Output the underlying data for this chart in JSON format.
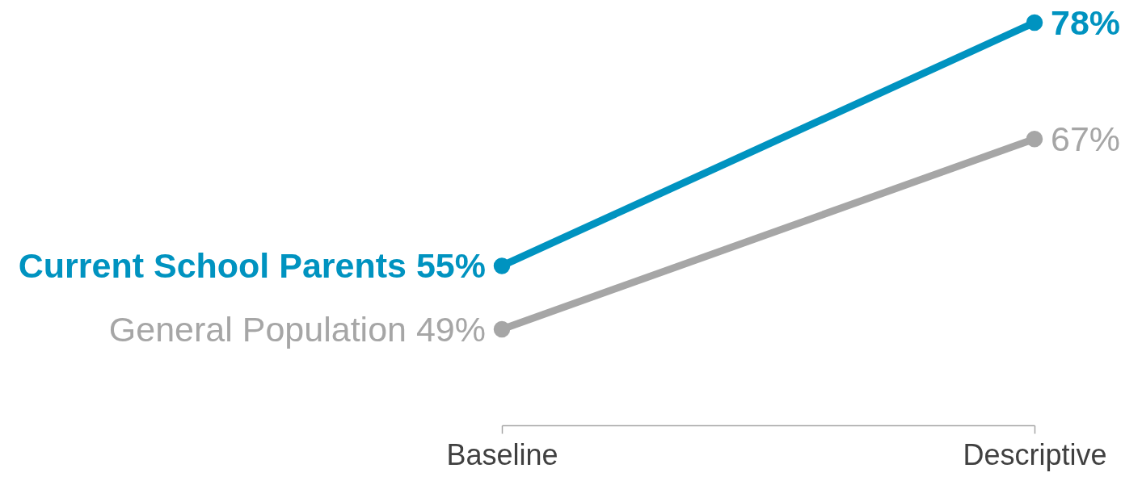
{
  "chart_data": {
    "type": "line",
    "categories": [
      "Baseline",
      "Descriptive"
    ],
    "series": [
      {
        "name": "Current School Parents",
        "color": "#0093c0",
        "values": [
          55,
          78
        ],
        "value_labels": [
          "55%",
          "78%"
        ]
      },
      {
        "name": "General Population",
        "color": "#a6a6a6",
        "values": [
          49,
          67
        ],
        "value_labels": [
          "49%",
          "67%"
        ]
      }
    ],
    "tick_labels": "x",
    "marker": "circle",
    "line_style": "solid",
    "grid": false
  }
}
